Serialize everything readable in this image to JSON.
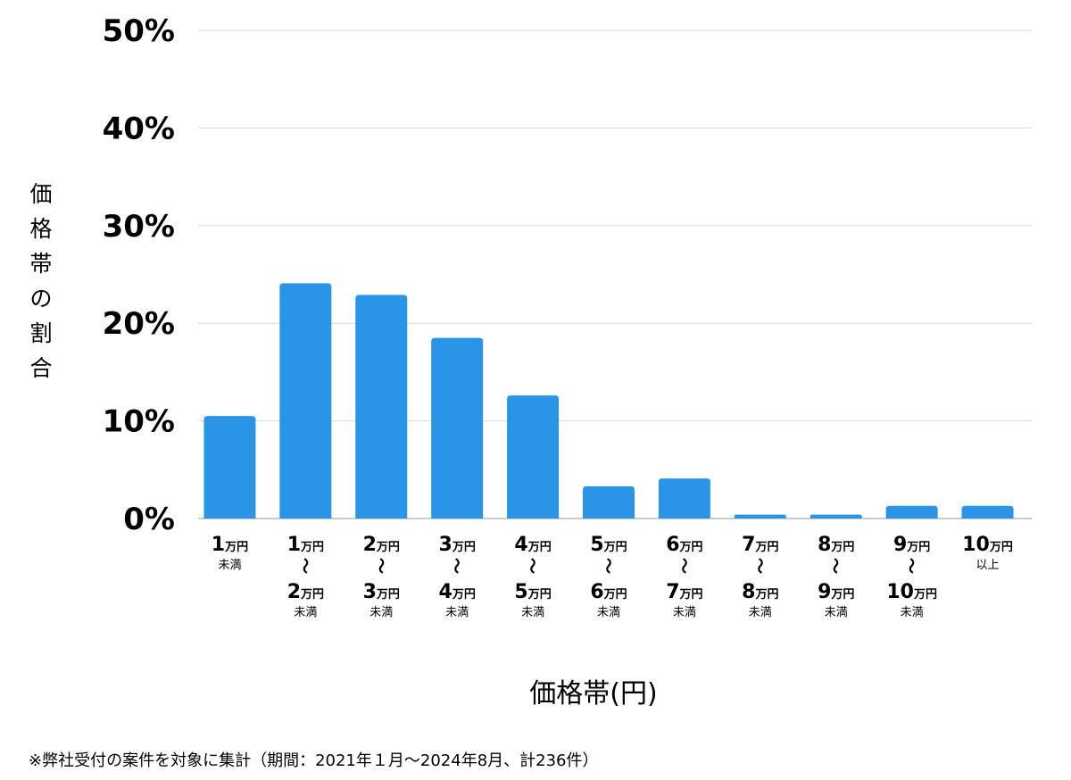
{
  "chart_data": {
    "type": "bar",
    "xlabel": "価格帯(円)",
    "ylabel": "価格帯の割合",
    "ylim": [
      0,
      50
    ],
    "yticks": [
      "0%",
      "10%",
      "20%",
      "30%",
      "40%",
      "50%"
    ],
    "ytick_values": [
      0,
      10,
      20,
      30,
      40,
      50
    ],
    "grid": true,
    "bar_color": "#2A95E6",
    "categories": [
      {
        "lines": [
          {
            "big": "1",
            "small": "万円"
          }
        ],
        "suffix": "未満"
      },
      {
        "lines": [
          {
            "big": "1",
            "small": "万円"
          },
          {
            "big": "2",
            "small": "万円"
          }
        ],
        "suffix": "未満"
      },
      {
        "lines": [
          {
            "big": "2",
            "small": "万円"
          },
          {
            "big": "3",
            "small": "万円"
          }
        ],
        "suffix": "未満"
      },
      {
        "lines": [
          {
            "big": "3",
            "small": "万円"
          },
          {
            "big": "4",
            "small": "万円"
          }
        ],
        "suffix": "未満"
      },
      {
        "lines": [
          {
            "big": "4",
            "small": "万円"
          },
          {
            "big": "5",
            "small": "万円"
          }
        ],
        "suffix": "未満"
      },
      {
        "lines": [
          {
            "big": "5",
            "small": "万円"
          },
          {
            "big": "6",
            "small": "万円"
          }
        ],
        "suffix": "未満"
      },
      {
        "lines": [
          {
            "big": "6",
            "small": "万円"
          },
          {
            "big": "7",
            "small": "万円"
          }
        ],
        "suffix": "未満"
      },
      {
        "lines": [
          {
            "big": "7",
            "small": "万円"
          },
          {
            "big": "8",
            "small": "万円"
          }
        ],
        "suffix": "未満"
      },
      {
        "lines": [
          {
            "big": "8",
            "small": "万円"
          },
          {
            "big": "9",
            "small": "万円"
          }
        ],
        "suffix": "未満"
      },
      {
        "lines": [
          {
            "big": "9",
            "small": "万円"
          },
          {
            "big": "10",
            "small": "万円"
          }
        ],
        "suffix": "未満"
      },
      {
        "lines": [
          {
            "big": "10",
            "small": "万円"
          }
        ],
        "suffix": "以上"
      }
    ],
    "range_mark": "〜",
    "values": [
      10.5,
      24.1,
      22.9,
      18.5,
      12.6,
      3.3,
      4.1,
      0.4,
      0.4,
      1.3,
      1.3
    ]
  },
  "footnote": "※弊社受付の案件を対象に集計（期間：2021年１月〜2024年8月、計236件）"
}
